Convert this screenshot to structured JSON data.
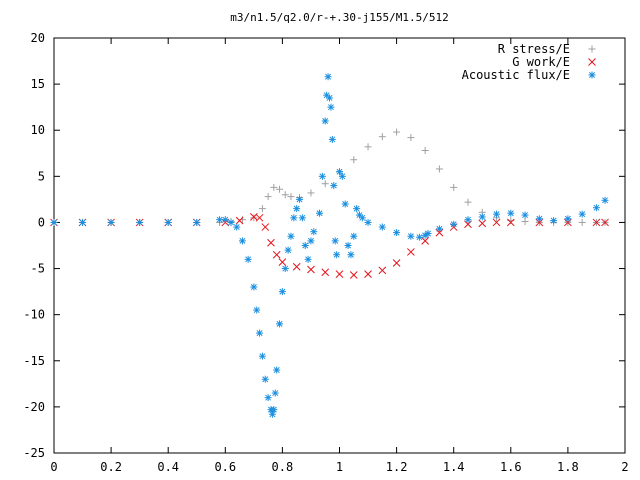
{
  "chart_data": {
    "type": "scatter",
    "title": "m3/n1.5/q2.0/r-+.30-j155/M1.5/512",
    "xlabel": "",
    "ylabel": "",
    "xlim": [
      0,
      2
    ],
    "ylim": [
      -25,
      20
    ],
    "xticks": [
      "0",
      "0.2",
      "0.4",
      "0.6",
      "0.8",
      "1",
      "1.2",
      "1.4",
      "1.6",
      "1.8",
      "2"
    ],
    "yticks": [
      "20",
      "15",
      "10",
      "5",
      "0",
      "-5",
      "-10",
      "-15",
      "-20",
      "-25"
    ],
    "grid": false,
    "legend_position": "top-right",
    "series": [
      {
        "name": "R stress/E",
        "marker": "plus",
        "color": "#a0a0a0",
        "x": [
          0.0,
          0.1,
          0.2,
          0.3,
          0.4,
          0.5,
          0.58,
          0.62,
          0.66,
          0.7,
          0.73,
          0.75,
          0.77,
          0.79,
          0.81,
          0.83,
          0.86,
          0.9,
          0.95,
          1.0,
          1.05,
          1.1,
          1.15,
          1.2,
          1.25,
          1.3,
          1.35,
          1.4,
          1.45,
          1.5,
          1.55,
          1.6,
          1.65,
          1.7,
          1.75,
          1.8,
          1.85,
          1.9,
          1.93
        ],
        "y": [
          0.0,
          0.0,
          0.0,
          0.0,
          0.0,
          0.0,
          0.0,
          0.1,
          0.3,
          0.5,
          1.5,
          2.8,
          3.8,
          3.6,
          3.0,
          2.8,
          2.7,
          3.2,
          4.2,
          5.5,
          6.8,
          8.2,
          9.3,
          9.8,
          9.2,
          7.8,
          5.8,
          3.8,
          2.2,
          1.1,
          0.5,
          0.2,
          0.1,
          0.0,
          0.0,
          0.0,
          0.0,
          0.0,
          0.0
        ]
      },
      {
        "name": "G work/E",
        "marker": "cross",
        "color": "#e8141c",
        "x": [
          0.0,
          0.1,
          0.2,
          0.3,
          0.4,
          0.5,
          0.6,
          0.65,
          0.7,
          0.72,
          0.74,
          0.76,
          0.78,
          0.8,
          0.85,
          0.9,
          0.95,
          1.0,
          1.05,
          1.1,
          1.15,
          1.2,
          1.25,
          1.3,
          1.35,
          1.4,
          1.45,
          1.5,
          1.55,
          1.6,
          1.7,
          1.8,
          1.9,
          1.93
        ],
        "y": [
          0.0,
          0.0,
          0.0,
          0.0,
          0.0,
          0.0,
          0.0,
          0.2,
          0.6,
          0.5,
          -0.5,
          -2.2,
          -3.5,
          -4.3,
          -4.8,
          -5.1,
          -5.4,
          -5.6,
          -5.7,
          -5.6,
          -5.2,
          -4.4,
          -3.2,
          -2.0,
          -1.1,
          -0.5,
          -0.2,
          -0.1,
          0.0,
          0.0,
          0.0,
          0.0,
          0.0,
          0.0
        ]
      },
      {
        "name": "Acoustic flux/E",
        "marker": "star",
        "color": "#1a8fe0",
        "x": [
          0.0,
          0.1,
          0.2,
          0.3,
          0.4,
          0.5,
          0.58,
          0.6,
          0.62,
          0.64,
          0.66,
          0.68,
          0.7,
          0.71,
          0.72,
          0.73,
          0.74,
          0.75,
          0.76,
          0.765,
          0.77,
          0.775,
          0.78,
          0.79,
          0.8,
          0.81,
          0.82,
          0.83,
          0.84,
          0.85,
          0.86,
          0.87,
          0.88,
          0.89,
          0.9,
          0.91,
          0.93,
          0.94,
          0.95,
          0.955,
          0.96,
          0.965,
          0.97,
          0.975,
          0.98,
          0.985,
          0.99,
          1.0,
          1.01,
          1.02,
          1.03,
          1.04,
          1.05,
          1.06,
          1.07,
          1.08,
          1.1,
          1.15,
          1.2,
          1.25,
          1.28,
          1.3,
          1.31,
          1.35,
          1.4,
          1.45,
          1.5,
          1.55,
          1.6,
          1.65,
          1.7,
          1.75,
          1.8,
          1.85,
          1.9,
          1.93
        ],
        "y": [
          0.0,
          0.0,
          0.0,
          0.0,
          0.0,
          0.0,
          0.3,
          0.3,
          0.0,
          -0.5,
          -2.0,
          -4.0,
          -7.0,
          -9.5,
          -12.0,
          -14.5,
          -17.0,
          -19.0,
          -20.3,
          -20.8,
          -20.3,
          -18.5,
          -16.0,
          -11.0,
          -7.5,
          -5.0,
          -3.0,
          -1.5,
          0.5,
          1.5,
          2.5,
          0.5,
          -2.5,
          -4.0,
          -2.0,
          -1.0,
          1.0,
          5.0,
          11.0,
          13.8,
          15.8,
          13.5,
          12.5,
          9.0,
          4.0,
          -2.0,
          -3.5,
          5.5,
          5.0,
          2.0,
          -2.5,
          -3.5,
          -1.5,
          1.5,
          0.8,
          0.5,
          0.0,
          -0.5,
          -1.1,
          -1.5,
          -1.6,
          -1.4,
          -1.2,
          -0.7,
          -0.2,
          0.3,
          0.6,
          0.9,
          1.0,
          0.8,
          0.4,
          0.2,
          0.4,
          0.9,
          1.6,
          2.4
        ]
      }
    ]
  }
}
